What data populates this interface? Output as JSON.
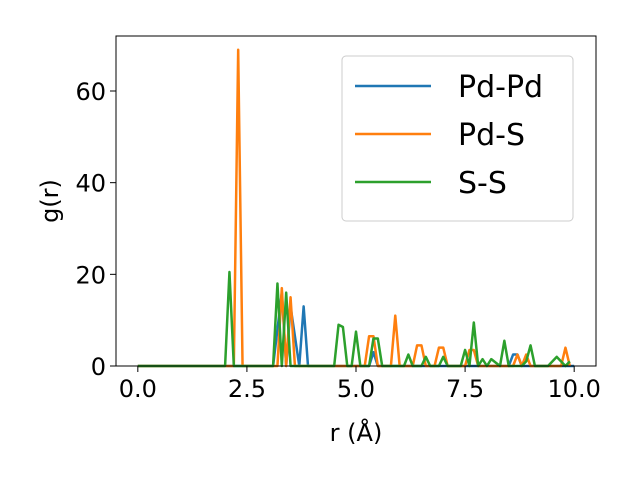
{
  "chart_data": {
    "type": "line",
    "xlabel": "r (Å)",
    "ylabel": "g(r)",
    "xlim": [
      -0.5,
      10.5
    ],
    "ylim": [
      0,
      72
    ],
    "x_ticks": [
      0.0,
      2.5,
      5.0,
      7.5,
      10.0
    ],
    "x_tick_labels": [
      "0.0",
      "2.5",
      "5.0",
      "7.5",
      "10.0"
    ],
    "y_ticks": [
      0,
      20,
      40,
      60
    ],
    "y_tick_labels": [
      "0",
      "20",
      "40",
      "60"
    ],
    "grid": false,
    "legend_position": "top-right",
    "series": [
      {
        "name": "Pd-Pd",
        "color": "#1f77b4",
        "x": [
          0.0,
          3.1,
          3.3,
          3.4,
          3.5,
          3.7,
          3.8,
          3.9,
          5.3,
          5.4,
          5.5,
          8.5,
          8.6,
          8.7,
          8.8,
          10.0
        ],
        "y": [
          0,
          0,
          16,
          0,
          13,
          0,
          13,
          0,
          0,
          3,
          0,
          0,
          2.5,
          2.5,
          0,
          0
        ]
      },
      {
        "name": "Pd-S",
        "color": "#ff7f0e",
        "x": [
          0.0,
          2.2,
          2.3,
          2.4,
          3.2,
          3.3,
          3.4,
          3.5,
          3.6,
          5.2,
          5.3,
          5.4,
          5.5,
          5.8,
          5.9,
          6.0,
          6.3,
          6.4,
          6.5,
          6.6,
          6.8,
          6.9,
          7.0,
          7.1,
          7.5,
          7.6,
          7.7,
          7.8,
          8.6,
          8.7,
          8.8,
          8.9,
          9.0,
          9.7,
          9.8,
          9.9
        ],
        "y": [
          0,
          0,
          69,
          0,
          0,
          17,
          0,
          15,
          0,
          0,
          6.5,
          6.5,
          0,
          0,
          11,
          0,
          0,
          4.5,
          4.5,
          0,
          0,
          4,
          4,
          0,
          0,
          3.5,
          3.5,
          0,
          0,
          2.5,
          0,
          2.5,
          0,
          0,
          4,
          0
        ]
      },
      {
        "name": "S-S",
        "color": "#2ca02c",
        "x": [
          0.0,
          2.0,
          2.1,
          2.2,
          3.1,
          3.2,
          3.3,
          3.4,
          3.5,
          4.5,
          4.6,
          4.7,
          4.8,
          4.9,
          5.0,
          5.1,
          5.3,
          5.4,
          5.5,
          5.6,
          6.1,
          6.2,
          6.3,
          6.5,
          6.6,
          6.7,
          6.9,
          7.0,
          7.1,
          7.4,
          7.5,
          7.6,
          7.7,
          7.8,
          7.9,
          8.0,
          8.1,
          8.3,
          8.4,
          8.5,
          8.8,
          8.9,
          9.0,
          9.1,
          9.4,
          9.6,
          9.8,
          9.9
        ],
        "y": [
          0,
          0,
          20.5,
          0,
          0,
          18,
          0,
          16,
          0,
          0,
          9,
          8.5,
          0,
          0,
          7.5,
          0,
          0,
          6,
          6,
          0,
          0,
          2.5,
          0,
          0,
          2,
          0,
          0,
          2,
          0,
          0,
          3.5,
          0,
          9.5,
          0,
          1.5,
          0,
          1.5,
          0,
          5.5,
          0,
          0,
          1,
          4.5,
          0,
          0,
          2,
          0,
          1
        ]
      }
    ]
  }
}
